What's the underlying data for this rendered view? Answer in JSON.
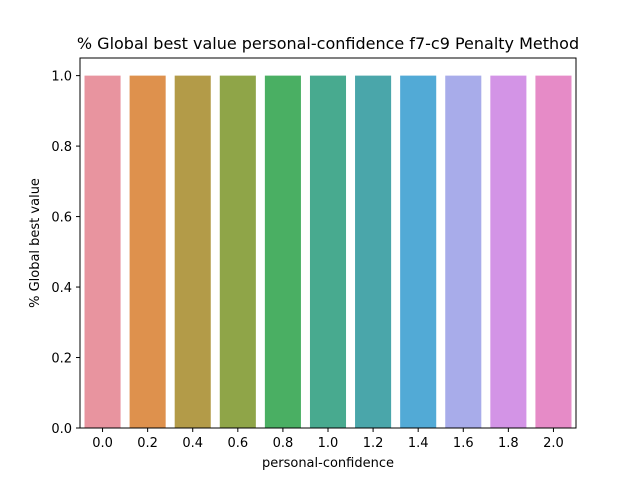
{
  "chart_data": {
    "type": "bar",
    "title": "% Global best value personal-confidence f7-c9 Penalty Method",
    "xlabel": "personal-confidence",
    "ylabel": "% Global best value",
    "categories": [
      "0.0",
      "0.2",
      "0.4",
      "0.6",
      "0.8",
      "1.0",
      "1.2",
      "1.4",
      "1.6",
      "1.8",
      "2.0"
    ],
    "values": [
      1.0,
      1.0,
      1.0,
      1.0,
      1.0,
      1.0,
      1.0,
      1.0,
      1.0,
      1.0,
      1.0
    ],
    "colors": [
      "#e8949f",
      "#de914d",
      "#b39b48",
      "#8fa548",
      "#4aaf63",
      "#48aa8f",
      "#4aa6aa",
      "#52aad6",
      "#a8acea",
      "#d394e6",
      "#e68bc7"
    ],
    "yticks": [
      "0.0",
      "0.2",
      "0.4",
      "0.6",
      "0.8",
      "1.0"
    ],
    "ylim": [
      0,
      1.05
    ],
    "grid": false,
    "legend": "none"
  }
}
